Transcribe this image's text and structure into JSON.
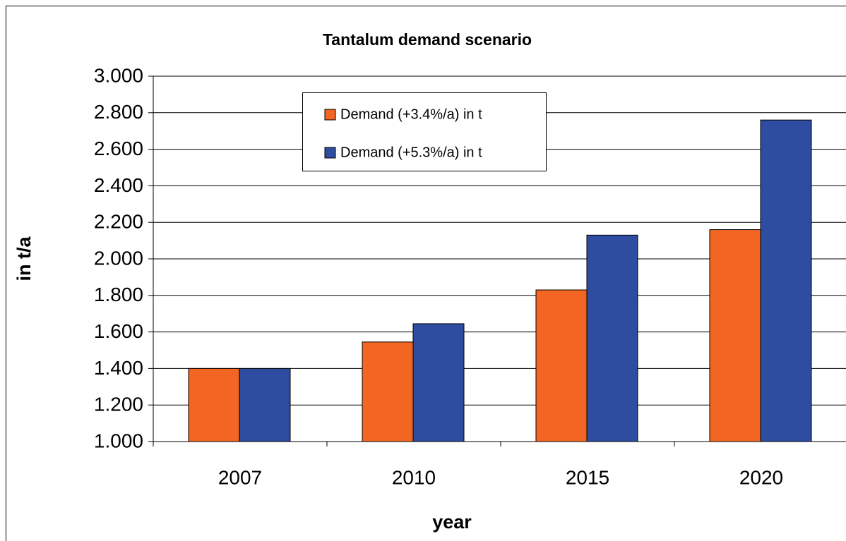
{
  "chart_data": {
    "type": "bar",
    "title": "Tantalum demand scenario",
    "x_label": "year",
    "y_label": "in t/a",
    "categories": [
      "2007",
      "2010",
      "2015",
      "2020"
    ],
    "series": [
      {
        "name": "Demand (+3.4%/a) in t",
        "color": "#f26522",
        "values": [
          1400,
          1545,
          1830,
          2160
        ]
      },
      {
        "name": "Demand (+5.3%/a) in t",
        "color": "#2e4da0",
        "values": [
          1400,
          1645,
          2130,
          2760
        ]
      }
    ],
    "ylim": [
      1000,
      3000
    ],
    "yticks": [
      {
        "value": 1000,
        "label": "1.000"
      },
      {
        "value": 1200,
        "label": "1.200"
      },
      {
        "value": 1400,
        "label": "1.400"
      },
      {
        "value": 1600,
        "label": "1.600"
      },
      {
        "value": 1800,
        "label": "1.800"
      },
      {
        "value": 2000,
        "label": "2.000"
      },
      {
        "value": 2200,
        "label": "2.200"
      },
      {
        "value": 2400,
        "label": "2.400"
      },
      {
        "value": 2600,
        "label": "2.600"
      },
      {
        "value": 2800,
        "label": "2.800"
      },
      {
        "value": 3000,
        "label": "3.000"
      }
    ],
    "grid": true
  }
}
